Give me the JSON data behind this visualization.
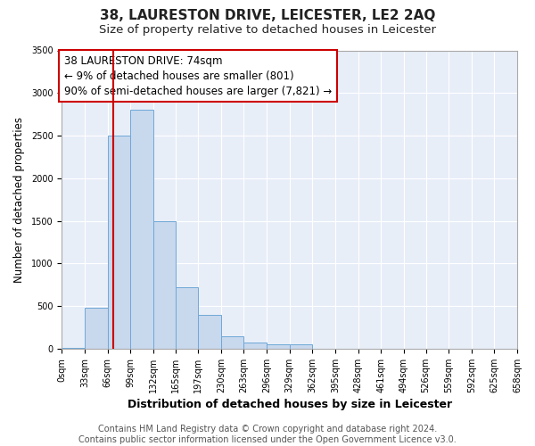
{
  "title": "38, LAURESTON DRIVE, LEICESTER, LE2 2AQ",
  "subtitle": "Size of property relative to detached houses in Leicester",
  "xlabel": "Distribution of detached houses by size in Leicester",
  "ylabel": "Number of detached properties",
  "bar_color": "#c8d8ed",
  "bar_edge_color": "#6ea8d8",
  "bin_edges": [
    0,
    33,
    66,
    99,
    132,
    165,
    197,
    230,
    263,
    296,
    329,
    362,
    395,
    428,
    461,
    494,
    526,
    559,
    592,
    625,
    658
  ],
  "bar_heights": [
    15,
    480,
    2500,
    2800,
    1500,
    720,
    400,
    145,
    70,
    55,
    50,
    0,
    0,
    0,
    0,
    0,
    0,
    0,
    0,
    0
  ],
  "tick_labels": [
    "0sqm",
    "33sqm",
    "66sqm",
    "99sqm",
    "132sqm",
    "165sqm",
    "197sqm",
    "230sqm",
    "263sqm",
    "296sqm",
    "329sqm",
    "362sqm",
    "395sqm",
    "428sqm",
    "461sqm",
    "494sqm",
    "526sqm",
    "559sqm",
    "592sqm",
    "625sqm",
    "658sqm"
  ],
  "ylim": [
    0,
    3500
  ],
  "yticks": [
    0,
    500,
    1000,
    1500,
    2000,
    2500,
    3000,
    3500
  ],
  "vline_x": 74,
  "vline_color": "#cc0000",
  "annotation_line1": "38 LAURESTON DRIVE: 74sqm",
  "annotation_line2": "← 9% of detached houses are smaller (801)",
  "annotation_line3": "90% of semi-detached houses are larger (7,821) →",
  "annotation_fontsize": 8.5,
  "footer_text": "Contains HM Land Registry data © Crown copyright and database right 2024.\nContains public sector information licensed under the Open Government Licence v3.0.",
  "figure_bg_color": "#ffffff",
  "plot_bg_color": "#e8eef8",
  "grid_color": "#ffffff",
  "title_fontsize": 11,
  "subtitle_fontsize": 9.5,
  "xlabel_fontsize": 9,
  "ylabel_fontsize": 8.5,
  "tick_fontsize": 7,
  "footer_fontsize": 7
}
